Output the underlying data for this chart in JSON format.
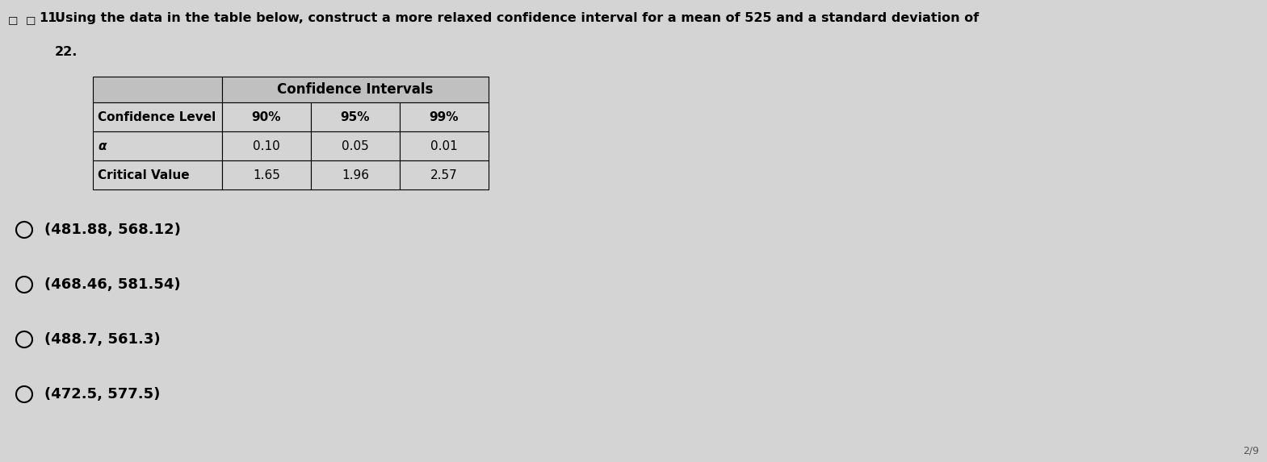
{
  "question_text_line1": "Using the data in the table below, construct a more relaxed confidence interval for a mean of 525 and a standard deviation of",
  "question_text_line2": "22.",
  "question_num": "11.",
  "table_header": "Confidence Intervals",
  "table_rows": [
    [
      "Confidence Level",
      "90%",
      "95%",
      "99%"
    ],
    [
      "α",
      "0.10",
      "0.05",
      "0.01"
    ],
    [
      "Critical Value",
      "1.65",
      "1.96",
      "2.57"
    ]
  ],
  "options": [
    "(481.88, 568.12)",
    "(468.46, 581.54)",
    "(488.7, 561.3)",
    "(472.5, 577.5)"
  ],
  "bg_color": "#d4d4d4",
  "table_header_bg": "#c0c0c0",
  "table_cell_bg": "#d4d4d4",
  "border_color": "#000000",
  "text_color": "#000000",
  "page_num": "2/9"
}
